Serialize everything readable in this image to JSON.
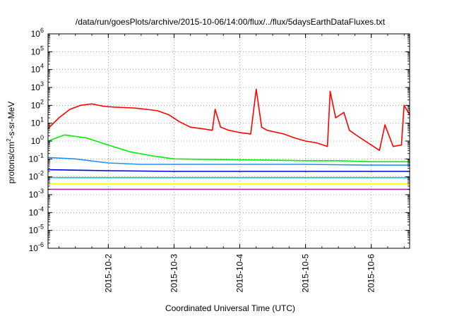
{
  "chart_data": {
    "type": "line",
    "title": "/data/run/goesPlots/archive/2015-10-06/14:00/flux/../flux/5daysEarthDataFluxes.txt",
    "xlabel": "Coordinated Universal Time (UTC)",
    "ylabel_parts": {
      "pre": "protons/cm",
      "sup": "2",
      "post": "-s-sr-MeV"
    },
    "x_scale": "time",
    "x_range": [
      "2015-10-01T02:00",
      "2015-10-06T14:00"
    ],
    "x_ticks": [
      {
        "label": "2015-10-2",
        "t": "2015-10-02T00:00"
      },
      {
        "label": "2015-10-3",
        "t": "2015-10-03T00:00"
      },
      {
        "label": "2015-10-4",
        "t": "2015-10-04T00:00"
      },
      {
        "label": "2015-10-5",
        "t": "2015-10-05T00:00"
      },
      {
        "label": "2015-10-6",
        "t": "2015-10-06T00:00"
      }
    ],
    "y_scale": "log",
    "y_range": [
      1e-06,
      1000000.0
    ],
    "y_ticks": [
      {
        "base": "10",
        "exp": "-6"
      },
      {
        "base": "10",
        "exp": "-5"
      },
      {
        "base": "10",
        "exp": "-4"
      },
      {
        "base": "10",
        "exp": "-3"
      },
      {
        "base": "10",
        "exp": "-2"
      },
      {
        "base": "10",
        "exp": "-1"
      },
      {
        "base": "10",
        "exp": "0"
      },
      {
        "base": "10",
        "exp": "1"
      },
      {
        "base": "10",
        "exp": "2"
      },
      {
        "base": "10",
        "exp": "3"
      },
      {
        "base": "10",
        "exp": "4"
      },
      {
        "base": "10",
        "exp": "5"
      },
      {
        "base": "10",
        "exp": "6"
      }
    ],
    "grid": true,
    "series": [
      {
        "color": "#ff0000",
        "x": [
          "2015-10-01T02:00",
          "2015-10-01T06:00",
          "2015-10-01T10:00",
          "2015-10-01T14:00",
          "2015-10-01T18:00",
          "2015-10-01T22:00",
          "2015-10-02T02:00",
          "2015-10-02T06:00",
          "2015-10-02T10:00",
          "2015-10-02T14:00",
          "2015-10-02T18:00",
          "2015-10-02T22:00",
          "2015-10-03T02:00",
          "2015-10-03T06:00",
          "2015-10-03T10:00",
          "2015-10-03T14:00",
          "2015-10-03T15:00",
          "2015-10-03T17:00",
          "2015-10-03T20:00",
          "2015-10-04T00:00",
          "2015-10-04T04:00",
          "2015-10-04T06:00",
          "2015-10-04T08:00",
          "2015-10-04T10:00",
          "2015-10-04T16:00",
          "2015-10-04T20:00",
          "2015-10-05T00:00",
          "2015-10-05T04:00",
          "2015-10-05T08:00",
          "2015-10-05T09:00",
          "2015-10-05T11:00",
          "2015-10-05T14:00",
          "2015-10-05T16:00",
          "2015-10-05T20:00",
          "2015-10-06T00:00",
          "2015-10-06T03:00",
          "2015-10-06T05:00",
          "2015-10-06T08:00",
          "2015-10-06T11:00",
          "2015-10-06T12:00",
          "2015-10-06T14:00"
        ],
        "y": [
          5,
          20,
          60,
          100,
          120,
          90,
          80,
          75,
          70,
          60,
          50,
          30,
          12,
          6,
          5,
          4,
          60,
          6,
          4,
          3,
          2.5,
          800,
          6,
          4,
          2.5,
          1.5,
          1,
          0.8,
          0.5,
          600,
          20,
          40,
          4,
          1.5,
          0.6,
          0.3,
          8,
          0.5,
          0.6,
          100,
          30
        ]
      },
      {
        "color": "#00ee00",
        "x": [
          "2015-10-01T02:00",
          "2015-10-01T08:00",
          "2015-10-01T16:00",
          "2015-10-02T00:00",
          "2015-10-02T08:00",
          "2015-10-02T16:00",
          "2015-10-03T00:00",
          "2015-10-04T00:00",
          "2015-10-05T00:00",
          "2015-10-05T12:00",
          "2015-10-06T00:00",
          "2015-10-06T14:00"
        ],
        "y": [
          1.0,
          2.2,
          1.5,
          0.6,
          0.25,
          0.15,
          0.1,
          0.09,
          0.08,
          0.08,
          0.07,
          0.07
        ]
      },
      {
        "color": "#1e90ff",
        "x": [
          "2015-10-01T02:00",
          "2015-10-01T12:00",
          "2015-10-02T00:00",
          "2015-10-02T12:00",
          "2015-10-03T00:00",
          "2015-10-04T00:00",
          "2015-10-05T00:00",
          "2015-10-06T00:00",
          "2015-10-06T14:00"
        ],
        "y": [
          0.12,
          0.1,
          0.06,
          0.05,
          0.05,
          0.05,
          0.05,
          0.045,
          0.045
        ]
      },
      {
        "color": "#0000dd",
        "x": [
          "2015-10-01T02:00",
          "2015-10-02T00:00",
          "2015-10-03T00:00",
          "2015-10-04T00:00",
          "2015-10-05T00:00",
          "2015-10-06T00:00",
          "2015-10-06T14:00"
        ],
        "y": [
          0.025,
          0.022,
          0.02,
          0.02,
          0.02,
          0.02,
          0.02
        ]
      },
      {
        "color": "#00ced1",
        "x": [
          "2015-10-01T02:00",
          "2015-10-02T00:00",
          "2015-10-03T00:00",
          "2015-10-04T00:00",
          "2015-10-05T00:00",
          "2015-10-06T00:00",
          "2015-10-06T14:00"
        ],
        "y": [
          0.009,
          0.009,
          0.009,
          0.009,
          0.009,
          0.009,
          0.009
        ]
      },
      {
        "color": "#ffff00",
        "x": [
          "2015-10-01T02:00",
          "2015-10-02T00:00",
          "2015-10-03T00:00",
          "2015-10-04T00:00",
          "2015-10-05T00:00",
          "2015-10-06T00:00",
          "2015-10-06T14:00"
        ],
        "y": [
          0.004,
          0.004,
          0.004,
          0.004,
          0.004,
          0.004,
          0.004
        ]
      },
      {
        "color": "#9b30a0",
        "x": [
          "2015-10-01T02:00",
          "2015-10-02T00:00",
          "2015-10-03T00:00",
          "2015-10-04T00:00",
          "2015-10-05T00:00",
          "2015-10-06T00:00",
          "2015-10-06T14:00"
        ],
        "y": [
          0.002,
          0.002,
          0.002,
          0.002,
          0.002,
          0.002,
          0.002
        ]
      }
    ]
  }
}
